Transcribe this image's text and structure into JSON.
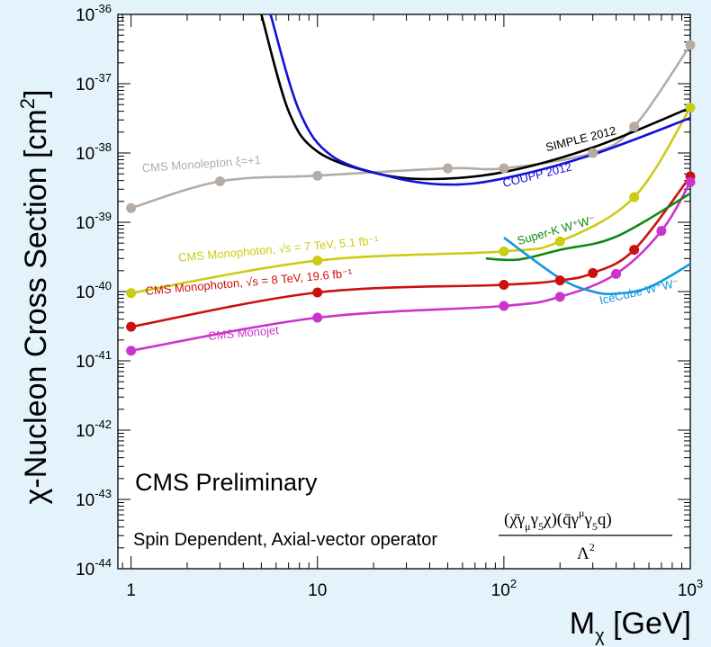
{
  "chart_data": {
    "type": "line",
    "xlabel": "M",
    "xlabel_sub": "χ",
    "xlabel_unit": "[GeV]",
    "ylabel": "χ-Nucleon Cross Section [cm",
    "ylabel_sup": "2",
    "ylabel_end": "]",
    "xscale": "log",
    "yscale": "log",
    "xlim": [
      0.85,
      1000
    ],
    "ylim": [
      1e-44,
      1e-36
    ],
    "grid": false,
    "x_ticks": [
      {
        "value": 1,
        "base": "1",
        "sup": ""
      },
      {
        "value": 10,
        "base": "10",
        "sup": ""
      },
      {
        "value": 100,
        "base": "10",
        "sup": "2"
      },
      {
        "value": 1000,
        "base": "10",
        "sup": "3"
      }
    ],
    "y_ticks": [
      {
        "value": 1e-36,
        "base": "10",
        "sup": "-36"
      },
      {
        "value": 1e-37,
        "base": "10",
        "sup": "-37"
      },
      {
        "value": 1e-38,
        "base": "10",
        "sup": "-38"
      },
      {
        "value": 1e-39,
        "base": "10",
        "sup": "-39"
      },
      {
        "value": 1e-40,
        "base": "10",
        "sup": "-40"
      },
      {
        "value": 1e-41,
        "base": "10",
        "sup": "-41"
      },
      {
        "value": 1e-42,
        "base": "10",
        "sup": "-42"
      },
      {
        "value": 1e-43,
        "base": "10",
        "sup": "-43"
      },
      {
        "value": 1e-44,
        "base": "10",
        "sup": "-44"
      }
    ],
    "series": [
      {
        "name": "CMS Monolepton ξ=+1",
        "color": "#b6aca4",
        "markers": true,
        "points": [
          [
            1,
            1.6e-39
          ],
          [
            3,
            3.9e-39
          ],
          [
            10,
            4.7e-39
          ],
          [
            50,
            6e-39
          ],
          [
            100,
            6e-39
          ],
          [
            300,
            1e-38
          ],
          [
            500,
            2.4e-38
          ],
          [
            1000,
            3.6e-37
          ]
        ]
      },
      {
        "name": "CMS Monophoton, √s = 7 TeV, 5.1 fb⁻¹",
        "color": "#cccc14",
        "markers": true,
        "points": [
          [
            1,
            9.5e-41
          ],
          [
            10,
            2.8e-40
          ],
          [
            100,
            3.8e-40
          ],
          [
            200,
            5.3e-40
          ],
          [
            500,
            2.3e-39
          ],
          [
            1000,
            4.5e-38
          ]
        ]
      },
      {
        "name": "CMS Monophoton, √s = 8 TeV, 19.6 fb⁻¹",
        "color": "#cc0f0f",
        "markers": true,
        "points": [
          [
            1,
            3.1e-41
          ],
          [
            10,
            9.7e-41
          ],
          [
            100,
            1.25e-40
          ],
          [
            200,
            1.45e-40
          ],
          [
            300,
            1.85e-40
          ],
          [
            500,
            4e-40
          ],
          [
            1000,
            4.6e-39
          ]
        ]
      },
      {
        "name": "CMS Monojet",
        "color": "#cc33cc",
        "markers": true,
        "points": [
          [
            1,
            1.4e-41
          ],
          [
            10,
            4.2e-41
          ],
          [
            100,
            6.2e-41
          ],
          [
            200,
            8.4e-41
          ],
          [
            400,
            1.8e-40
          ],
          [
            700,
            7.5e-40
          ],
          [
            1000,
            3.8e-39
          ]
        ]
      },
      {
        "name": "SIMPLE 2012",
        "color": "#000000",
        "markers": false,
        "points": [
          [
            5.0,
            1e-36
          ],
          [
            7,
            4e-38
          ],
          [
            10,
            1.05e-38
          ],
          [
            20,
            5.2e-39
          ],
          [
            40,
            4.2e-39
          ],
          [
            100,
            5.3e-39
          ],
          [
            300,
            1.2e-38
          ],
          [
            1000,
            4.5e-38
          ]
        ]
      },
      {
        "name": "COUPP 2012",
        "color": "#1010dd",
        "markers": false,
        "points": [
          [
            5.6,
            1e-36
          ],
          [
            8,
            4e-38
          ],
          [
            12,
            9e-39
          ],
          [
            25,
            4.5e-39
          ],
          [
            50,
            3.5e-39
          ],
          [
            100,
            4.3e-39
          ],
          [
            300,
            9.5e-39
          ],
          [
            1000,
            3.2e-38
          ]
        ]
      },
      {
        "name": "Super-K W⁺W⁻",
        "color": "#118811",
        "markers": false,
        "points": [
          [
            80,
            3e-40
          ],
          [
            120,
            2.9e-40
          ],
          [
            200,
            4e-40
          ],
          [
            400,
            6.2e-40
          ],
          [
            1000,
            2.6e-39
          ]
        ]
      },
      {
        "name": "IceCube W⁺W⁻",
        "color": "#1199dd",
        "markers": false,
        "points": [
          [
            100,
            6e-40
          ],
          [
            200,
            1.55e-40
          ],
          [
            300,
            1e-40
          ],
          [
            400,
            9.3e-41
          ],
          [
            600,
            1.15e-40
          ],
          [
            1000,
            2.5e-40
          ]
        ]
      }
    ],
    "label_positions": [
      {
        "series": 0,
        "text": "CMS Monolepton ξ=+1",
        "x": 1.15,
        "y": 5.3e-39,
        "angle": -4
      },
      {
        "series": 1,
        "text": "CMS Monophoton, √s = 7 TeV, 5.1 fb⁻¹",
        "x": 1.8,
        "y": 2.7e-40,
        "angle": -5
      },
      {
        "series": 2,
        "text": "CMS Monophoton, √s = 8 TeV, 19.6 fb⁻¹",
        "x": 1.2,
        "y": 8.9e-41,
        "angle": -5
      },
      {
        "series": 3,
        "text": "CMS Monojet",
        "x": 2.6,
        "y": 2e-41,
        "angle": -5
      },
      {
        "series": 4,
        "text": "SIMPLE 2012",
        "x": 170,
        "y": 1.05e-38,
        "angle": -14
      },
      {
        "series": 5,
        "text": "COUPP 2012",
        "x": 100,
        "y": 3.2e-39,
        "angle": -14
      },
      {
        "series": 6,
        "text": "Super-K W⁺W⁻",
        "x": 120,
        "y": 4.7e-40,
        "angle": -16
      },
      {
        "series": 7,
        "text": "IceCube W⁺W⁻",
        "x": 330,
        "y": 6.5e-41,
        "angle": -13
      }
    ],
    "annotations": {
      "preliminary": "CMS Preliminary",
      "operator_text": "Spin Dependent, Axial-vector operator",
      "formula_numerator": "(χ̄γ",
      "formula_den": "Λ",
      "formula_den_sup": "2"
    }
  }
}
